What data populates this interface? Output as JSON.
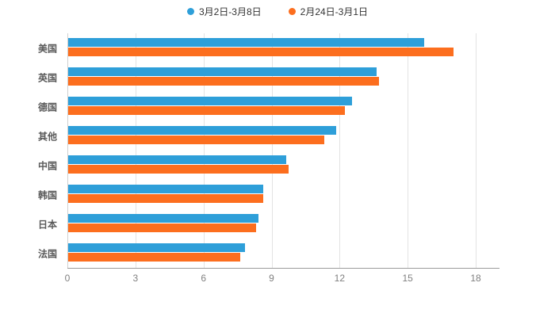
{
  "legend": {
    "items": [
      {
        "label": "3月2日-3月8日",
        "color": "#2E9FD9"
      },
      {
        "label": "2月24日-3月1日",
        "color": "#FC6E1E"
      }
    ]
  },
  "chart_data": {
    "type": "bar",
    "orientation": "horizontal",
    "title": "",
    "categories": [
      "美国",
      "英国",
      "德国",
      "其他",
      "中国",
      "韩国",
      "日本",
      "法国"
    ],
    "series": [
      {
        "name": "3月2日-3月8日",
        "color": "#2E9FD9",
        "values": [
          15.7,
          13.6,
          12.5,
          11.8,
          9.6,
          8.6,
          8.4,
          7.8
        ]
      },
      {
        "name": "2月24日-3月1日",
        "color": "#FC6E1E",
        "values": [
          17.0,
          13.7,
          12.2,
          11.3,
          9.7,
          8.6,
          8.3,
          7.6
        ]
      }
    ],
    "xlim": [
      0,
      18
    ],
    "xticks": [
      0,
      3,
      6,
      9,
      12,
      15,
      18
    ],
    "grid": true,
    "legend_position": "top",
    "xlabel": "",
    "ylabel": ""
  }
}
